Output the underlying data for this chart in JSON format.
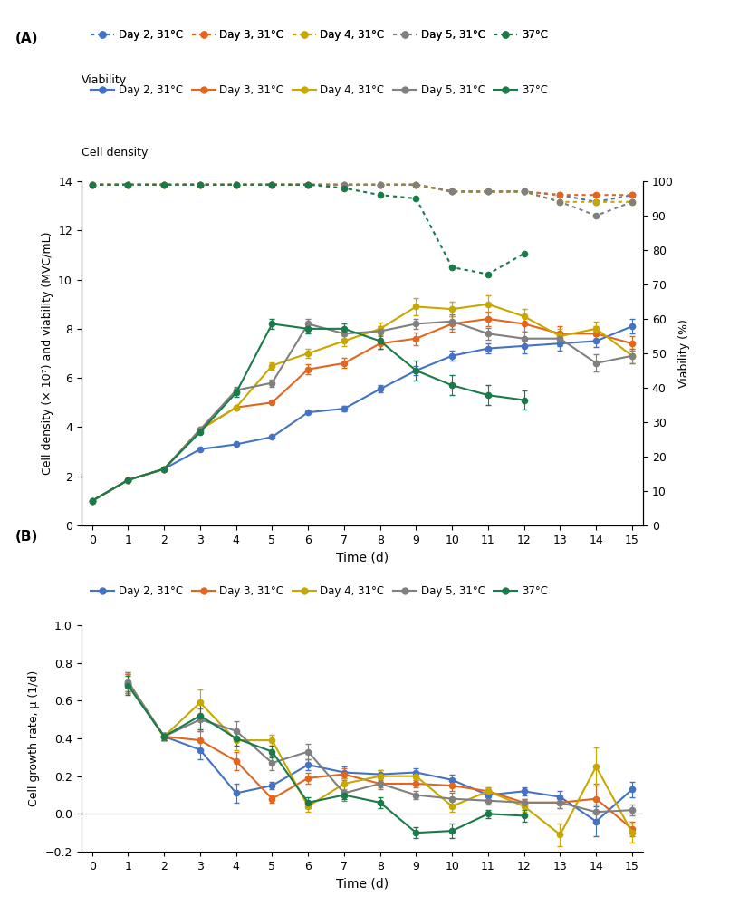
{
  "colors": {
    "blue": "#4472C4",
    "orange": "#E4651D",
    "yellow": "#C8A800",
    "gray": "#808080",
    "green": "#1A7A4A"
  },
  "panel_A": {
    "time": [
      0,
      1,
      2,
      3,
      4,
      5,
      6,
      7,
      8,
      9,
      10,
      11,
      12,
      13,
      14,
      15
    ],
    "cell_density": {
      "day2_31": [
        1.0,
        1.85,
        2.3,
        3.1,
        3.3,
        3.6,
        4.6,
        4.75,
        5.55,
        6.3,
        6.9,
        7.2,
        7.3,
        7.4,
        7.5,
        8.1
      ],
      "day3_31": [
        1.0,
        1.85,
        2.3,
        3.9,
        4.8,
        5.0,
        6.35,
        6.6,
        7.4,
        7.6,
        8.2,
        8.4,
        8.2,
        7.8,
        7.8,
        7.4
      ],
      "day4_31": [
        1.0,
        1.85,
        2.3,
        3.9,
        4.8,
        6.5,
        7.0,
        7.5,
        8.0,
        8.9,
        8.8,
        9.0,
        8.5,
        7.7,
        8.0,
        6.9
      ],
      "day5_31": [
        1.0,
        1.85,
        2.3,
        3.9,
        5.5,
        5.8,
        8.2,
        7.8,
        7.9,
        8.2,
        8.3,
        7.8,
        7.6,
        7.6,
        6.6,
        6.9
      ],
      "37C": [
        1.0,
        1.85,
        2.3,
        3.8,
        5.4,
        8.2,
        8.0,
        8.0,
        7.5,
        6.3,
        5.7,
        5.3,
        5.1,
        null,
        null,
        null
      ]
    },
    "cell_density_err": {
      "day2_31": [
        0.0,
        0.0,
        0.0,
        0.0,
        0.0,
        0.0,
        0.0,
        0.1,
        0.15,
        0.2,
        0.2,
        0.2,
        0.3,
        0.3,
        0.25,
        0.3
      ],
      "day3_31": [
        0.0,
        0.0,
        0.0,
        0.0,
        0.0,
        0.0,
        0.2,
        0.2,
        0.2,
        0.25,
        0.3,
        0.3,
        0.3,
        0.3,
        0.3,
        0.3
      ],
      "day4_31": [
        0.0,
        0.0,
        0.0,
        0.0,
        0.0,
        0.15,
        0.2,
        0.2,
        0.25,
        0.35,
        0.3,
        0.35,
        0.3,
        0.3,
        0.3,
        0.3
      ],
      "day5_31": [
        0.0,
        0.0,
        0.0,
        0.0,
        0.15,
        0.15,
        0.2,
        0.2,
        0.2,
        0.2,
        0.3,
        0.25,
        0.3,
        0.3,
        0.35,
        0.3
      ],
      "37C": [
        0.0,
        0.0,
        0.0,
        0.0,
        0.15,
        0.2,
        0.2,
        0.2,
        0.3,
        0.4,
        0.4,
        0.4,
        0.4,
        null,
        null,
        null
      ]
    },
    "viability_pct": {
      "day2_31": [
        99,
        99,
        99,
        99,
        99,
        99,
        99,
        99,
        99,
        99,
        97,
        97,
        97,
        96,
        94,
        96
      ],
      "day3_31": [
        99,
        99,
        99,
        99,
        99,
        99,
        99,
        99,
        99,
        99,
        97,
        97,
        97,
        96,
        96,
        96
      ],
      "day4_31": [
        99,
        99,
        99,
        99,
        99,
        99,
        99,
        99,
        99,
        99,
        97,
        97,
        97,
        94,
        94,
        94
      ],
      "day5_31": [
        99,
        99,
        99,
        99,
        99,
        99,
        99,
        99,
        99,
        99,
        97,
        97,
        97,
        94,
        90,
        94
      ],
      "37C": [
        99,
        99,
        99,
        99,
        99,
        99,
        99,
        98,
        96,
        95,
        75,
        73,
        79,
        null,
        null,
        null
      ]
    }
  },
  "panel_B": {
    "time": [
      1,
      2,
      3,
      4,
      5,
      6,
      7,
      8,
      9,
      10,
      11,
      12,
      13,
      14,
      15
    ],
    "growth_rate": {
      "day2_31": [
        0.69,
        0.41,
        0.34,
        0.11,
        0.15,
        0.26,
        0.22,
        0.21,
        0.22,
        0.18,
        0.1,
        0.12,
        0.09,
        -0.04,
        0.13
      ],
      "day3_31": [
        0.69,
        0.41,
        0.39,
        0.28,
        0.08,
        0.19,
        0.21,
        0.16,
        0.16,
        0.15,
        0.12,
        0.06,
        0.06,
        0.08,
        -0.08
      ],
      "day4_31": [
        0.7,
        0.41,
        0.59,
        0.39,
        0.39,
        0.04,
        0.16,
        0.2,
        0.2,
        0.04,
        0.12,
        0.04,
        -0.11,
        0.25,
        -0.1
      ],
      "day5_31": [
        0.7,
        0.41,
        0.5,
        0.44,
        0.27,
        0.33,
        0.11,
        0.16,
        0.1,
        0.08,
        0.07,
        0.06,
        0.06,
        0.01,
        0.02
      ],
      "37C": [
        0.68,
        0.41,
        0.52,
        0.4,
        0.33,
        0.06,
        0.1,
        0.06,
        -0.1,
        -0.09,
        0.0,
        -0.01,
        null,
        null,
        null
      ]
    },
    "growth_rate_err": {
      "day2_31": [
        0.05,
        0.02,
        0.05,
        0.05,
        0.02,
        0.03,
        0.03,
        0.02,
        0.02,
        0.03,
        0.02,
        0.02,
        0.03,
        0.08,
        0.04
      ],
      "day3_31": [
        0.05,
        0.02,
        0.05,
        0.05,
        0.02,
        0.03,
        0.03,
        0.02,
        0.02,
        0.03,
        0.02,
        0.02,
        0.03,
        0.08,
        0.04
      ],
      "day4_31": [
        0.05,
        0.02,
        0.07,
        0.05,
        0.03,
        0.03,
        0.03,
        0.03,
        0.02,
        0.03,
        0.02,
        0.03,
        0.06,
        0.1,
        0.05
      ],
      "day5_31": [
        0.05,
        0.02,
        0.06,
        0.05,
        0.04,
        0.04,
        0.04,
        0.03,
        0.02,
        0.03,
        0.02,
        0.02,
        0.03,
        0.04,
        0.03
      ],
      "37C": [
        0.05,
        0.02,
        0.07,
        0.04,
        0.03,
        0.03,
        0.02,
        0.03,
        0.03,
        0.04,
        0.02,
        0.03,
        null,
        null,
        null
      ]
    }
  },
  "legend_labels": [
    "Day 2, 31°C",
    "Day 3, 31°C",
    "Day 4, 31°C",
    "Day 5, 31°C",
    "37°C"
  ],
  "ylabel_A": "Cell density (× 10⁷) and viability (MVC/mL)",
  "ylabel_A_right": "Viability (%)",
  "ylabel_B": "Cell growth rate, μ (1/d)",
  "xlabel": "Time (d)"
}
